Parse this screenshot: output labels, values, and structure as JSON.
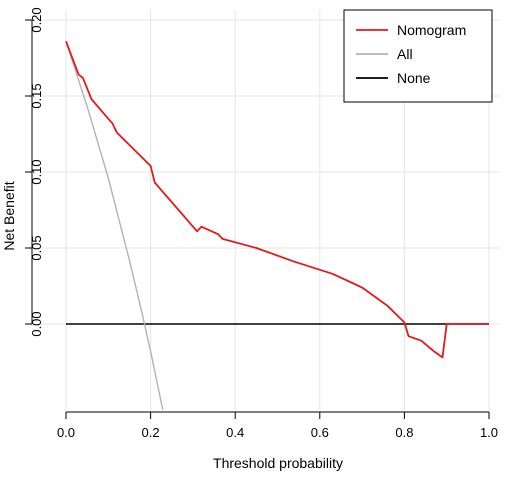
{
  "chart_data": {
    "type": "line",
    "xlabel": "Threshold probability",
    "ylabel": "Net Benefit",
    "xlim": [
      0,
      1
    ],
    "ylim": [
      -0.05,
      0.2
    ],
    "x_ticks": [
      {
        "value": 0,
        "label": "0.0"
      },
      {
        "value": 0.2,
        "label": "0.2"
      },
      {
        "value": 0.4,
        "label": "0.4"
      },
      {
        "value": 0.6,
        "label": "0.6"
      },
      {
        "value": 0.8,
        "label": "0.8"
      },
      {
        "value": 1.0,
        "label": "1.0"
      }
    ],
    "y_ticks": [
      {
        "value": 0,
        "label": "0.00"
      },
      {
        "value": 0.05,
        "label": "0.05"
      },
      {
        "value": 0.1,
        "label": "0.10"
      },
      {
        "value": 0.15,
        "label": "0.15"
      },
      {
        "value": 0.2,
        "label": "0.20"
      }
    ],
    "grid": true,
    "legend_position": "top-right",
    "series": [
      {
        "name": "Nomogram",
        "color": "#e31a1c",
        "points": [
          [
            0.0,
            0.186
          ],
          [
            0.03,
            0.164
          ],
          [
            0.04,
            0.162
          ],
          [
            0.06,
            0.148
          ],
          [
            0.1,
            0.135
          ],
          [
            0.11,
            0.132
          ],
          [
            0.12,
            0.126
          ],
          [
            0.2,
            0.104
          ],
          [
            0.21,
            0.093
          ],
          [
            0.31,
            0.061
          ],
          [
            0.32,
            0.064
          ],
          [
            0.36,
            0.059
          ],
          [
            0.37,
            0.056
          ],
          [
            0.45,
            0.05
          ],
          [
            0.53,
            0.042
          ],
          [
            0.54,
            0.041
          ],
          [
            0.63,
            0.033
          ],
          [
            0.7,
            0.024
          ],
          [
            0.76,
            0.012
          ],
          [
            0.8,
            0.001
          ],
          [
            0.81,
            -0.008
          ],
          [
            0.84,
            -0.011
          ],
          [
            0.87,
            -0.018
          ],
          [
            0.89,
            -0.022
          ],
          [
            0.9,
            0.0
          ],
          [
            1.0,
            0.0
          ]
        ]
      },
      {
        "name": "All",
        "color": "#b3b3b3",
        "points": [
          [
            0.0,
            0.186
          ],
          [
            0.05,
            0.143
          ],
          [
            0.1,
            0.096
          ],
          [
            0.15,
            0.042
          ],
          [
            0.18,
            0.007
          ],
          [
            0.2,
            -0.018
          ],
          [
            0.23,
            -0.058
          ]
        ]
      },
      {
        "name": "None",
        "color": "#000000",
        "points": [
          [
            0.0,
            0.0
          ],
          [
            1.0,
            0.0
          ]
        ]
      }
    ]
  }
}
